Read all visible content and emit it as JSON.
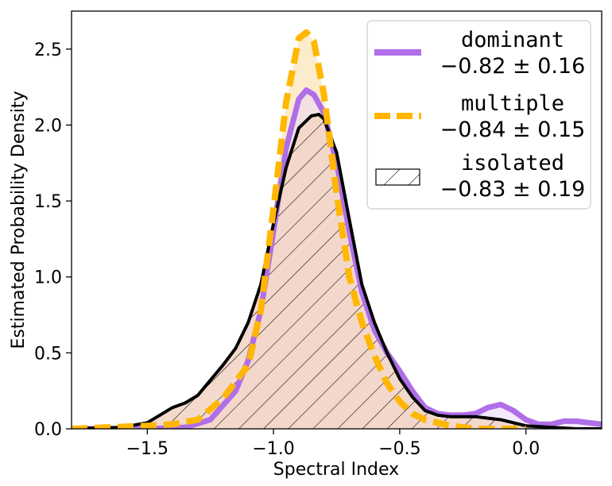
{
  "chart_data": {
    "type": "line",
    "title": "",
    "xlabel": "Spectral Index",
    "ylabel": "Estimated Probability Density",
    "xlim": [
      -1.8,
      0.3
    ],
    "ylim": [
      0.0,
      2.75
    ],
    "xticks": [
      -1.5,
      -1.0,
      -0.5,
      0.0
    ],
    "xtick_labels": [
      "−1.5",
      "−1.0",
      "−0.5",
      "0.0"
    ],
    "yticks": [
      0.0,
      0.5,
      1.0,
      1.5,
      2.0,
      2.5
    ],
    "ytick_labels": [
      "0.0",
      "0.5",
      "1.0",
      "1.5",
      "2.0",
      "2.5"
    ],
    "legend_position": "top-right",
    "series": [
      {
        "name": "dominant",
        "stat": "−0.82 ± 0.16",
        "style": "solid-thick",
        "color": "#b06ee8",
        "fill": "#e9d7f7",
        "x": [
          -1.8,
          -1.5,
          -1.35,
          -1.25,
          -1.15,
          -1.1,
          -1.05,
          -1.0,
          -0.95,
          -0.9,
          -0.87,
          -0.84,
          -0.8,
          -0.75,
          -0.7,
          -0.65,
          -0.6,
          -0.55,
          -0.5,
          -0.45,
          -0.4,
          -0.35,
          -0.3,
          -0.25,
          -0.2,
          -0.15,
          -0.1,
          -0.05,
          0.0,
          0.05,
          0.1,
          0.15,
          0.2,
          0.3
        ],
        "y": [
          0.0,
          0.0,
          0.01,
          0.06,
          0.25,
          0.45,
          0.78,
          1.3,
          1.85,
          2.17,
          2.23,
          2.2,
          2.08,
          1.75,
          1.3,
          0.9,
          0.65,
          0.5,
          0.38,
          0.25,
          0.14,
          0.1,
          0.09,
          0.09,
          0.1,
          0.14,
          0.16,
          0.12,
          0.06,
          0.03,
          0.03,
          0.05,
          0.05,
          0.03
        ]
      },
      {
        "name": "multiple",
        "stat": "−0.84 ± 0.15",
        "style": "dashed-thick",
        "color": "#ffb703",
        "fill": "#fdebc8",
        "x": [
          -1.8,
          -1.5,
          -1.4,
          -1.3,
          -1.2,
          -1.1,
          -1.05,
          -1.0,
          -0.95,
          -0.9,
          -0.87,
          -0.84,
          -0.8,
          -0.75,
          -0.7,
          -0.65,
          -0.6,
          -0.55,
          -0.5,
          -0.45,
          -0.4,
          -0.35,
          -0.3,
          -0.25,
          -0.2,
          -0.1,
          0.0
        ],
        "y": [
          0.0,
          0.02,
          0.03,
          0.06,
          0.2,
          0.42,
          0.78,
          1.45,
          2.15,
          2.57,
          2.61,
          2.55,
          2.2,
          1.55,
          1.0,
          0.7,
          0.48,
          0.3,
          0.18,
          0.1,
          0.06,
          0.04,
          0.02,
          0.01,
          0.0,
          0.0,
          0.0
        ]
      },
      {
        "name": "isolated",
        "stat": "−0.83 ± 0.19",
        "style": "solid-hatched",
        "color": "#000000",
        "fill": "#f3d6c7",
        "x": [
          -1.8,
          -1.6,
          -1.5,
          -1.45,
          -1.4,
          -1.35,
          -1.3,
          -1.25,
          -1.2,
          -1.15,
          -1.1,
          -1.05,
          -1.0,
          -0.95,
          -0.9,
          -0.85,
          -0.82,
          -0.8,
          -0.75,
          -0.7,
          -0.65,
          -0.6,
          -0.55,
          -0.5,
          -0.45,
          -0.4,
          -0.35,
          -0.3,
          -0.25,
          -0.2,
          -0.15,
          -0.1,
          -0.05,
          0.0,
          0.1,
          0.2,
          0.3
        ],
        "y": [
          0.0,
          0.01,
          0.04,
          0.09,
          0.14,
          0.17,
          0.22,
          0.32,
          0.42,
          0.53,
          0.7,
          0.95,
          1.35,
          1.72,
          1.98,
          2.06,
          2.07,
          2.04,
          1.82,
          1.38,
          0.95,
          0.7,
          0.5,
          0.33,
          0.21,
          0.12,
          0.09,
          0.08,
          0.08,
          0.08,
          0.07,
          0.06,
          0.04,
          0.02,
          0.01,
          0.0,
          0.0
        ]
      }
    ]
  }
}
